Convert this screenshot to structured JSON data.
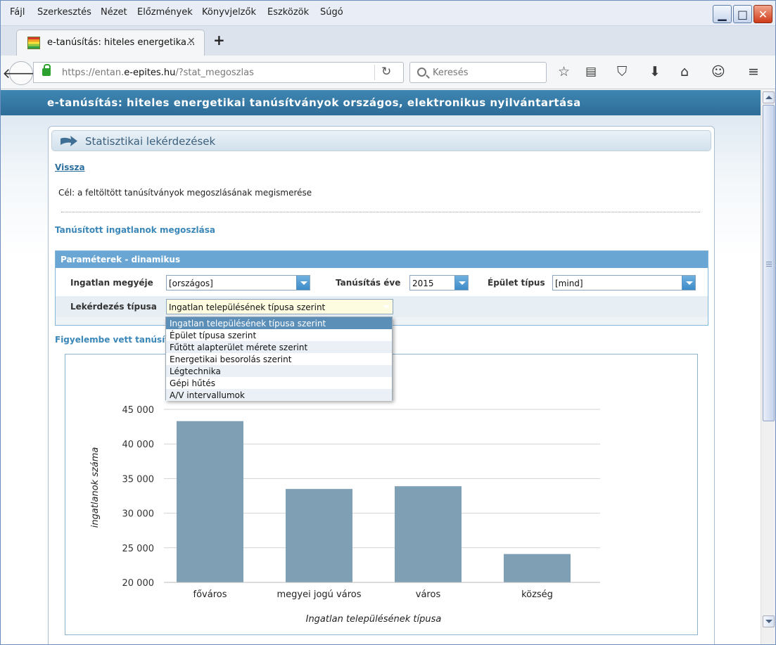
{
  "menu": {
    "items": [
      "Fájl",
      "Szerkesztés",
      "Nézet",
      "Előzmények",
      "Könyvjelzők",
      "Eszközök",
      "Súgó"
    ]
  },
  "tab": {
    "title": "e-tanúsítás: hiteles energetika..."
  },
  "url": {
    "prefix": "https://entan.",
    "domain": "e-epites.hu",
    "path": "/?stat_megoszlas"
  },
  "search": {
    "placeholder": "Keresés"
  },
  "banner": {
    "title": "e-tanúsítás: hiteles energetikai tanúsítványok országos, elektronikus nyilvántartása"
  },
  "panel": {
    "title": "Statisztikai lekérdezések",
    "back_link": "Vissza",
    "goal": "Cél: a feltöltött tanúsítványok megoszlásának megismerése",
    "section_title": "Tanúsított ingatlanok megoszlása",
    "considered": "Figyelembe vett tanúsítv"
  },
  "params": {
    "title": "Paraméterek - dinamikus",
    "county_label": "Ingatlan megyéje",
    "county_value": "[országos]",
    "year_label": "Tanúsítás éve",
    "year_value": "2015",
    "building_label": "Épület típus",
    "building_value": "[mind]",
    "query_label": "Lekérdezés típusa",
    "query_value": "Ingatlan településének típusa szerint"
  },
  "dropdown": {
    "items": [
      "Ingatlan településének típusa szerint",
      "Épület típusa szerint",
      "Fűtött alapterület mérete szerint",
      "Energetikai besorolás szerint",
      "Légtechnika",
      "Gépi hűtés",
      "A/V intervallumok"
    ],
    "selected_index": 0
  },
  "colors": {
    "bar": "#7f9fb5",
    "banner": "#3579a6",
    "accent": "#3b87b8"
  },
  "chart_data": {
    "type": "bar",
    "categories": [
      "főváros",
      "megyei jogú város",
      "város",
      "község"
    ],
    "values": [
      43300,
      33500,
      33900,
      24100
    ],
    "xlabel": "Ingatlan településének típusa",
    "ylabel": "ingatlanok száma",
    "ylim": [
      20000,
      45000
    ],
    "yticks": [
      20000,
      25000,
      30000,
      35000,
      40000,
      45000
    ],
    "ytick_labels": [
      "20 000",
      "25 000",
      "30 000",
      "35 000",
      "40 000",
      "45 000"
    ],
    "grid": true
  }
}
